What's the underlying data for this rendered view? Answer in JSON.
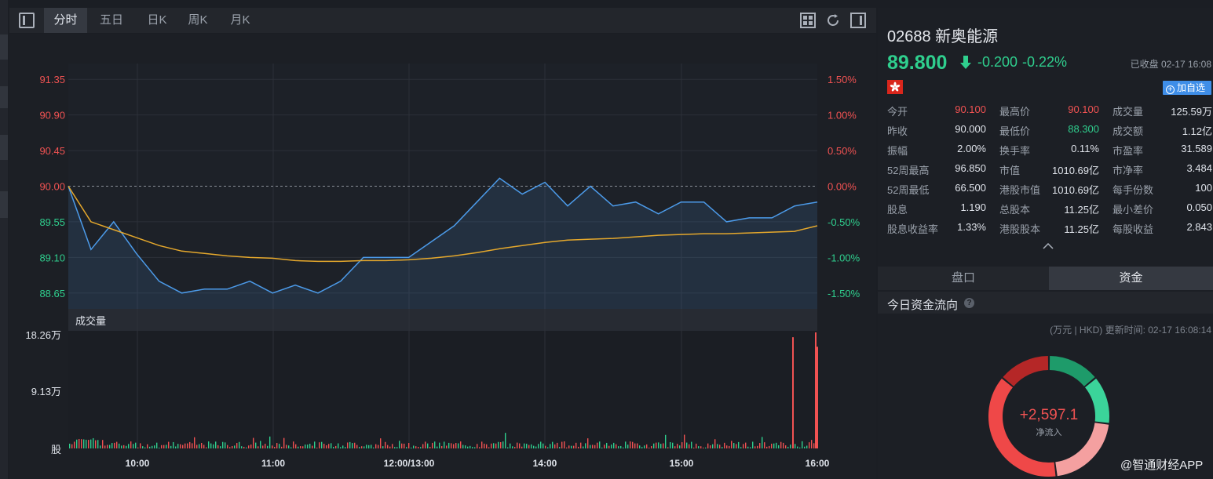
{
  "toolbar": {
    "tabs": [
      "分时",
      "五日",
      "日K",
      "周K",
      "月K"
    ],
    "active_tab": "分时"
  },
  "chart": {
    "price_ticks": [
      "91.35",
      "90.90",
      "90.45",
      "90.00",
      "89.55",
      "89.10",
      "88.65"
    ],
    "pct_ticks": [
      "1.50%",
      "1.00%",
      "0.50%",
      "0.00%",
      "-0.50%",
      "-1.00%",
      "-1.50%"
    ],
    "volume_label": "成交量",
    "volume_ticks": [
      "18.26万",
      "9.13万",
      "股"
    ],
    "time_ticks": [
      "10:00",
      "11:00",
      "12:00/13:00",
      "14:00",
      "15:00",
      "16:00"
    ],
    "colors": {
      "up": "#f05252",
      "down": "#2fcf8e",
      "price_line": "#4c9bea",
      "avg_line": "#e5a82c"
    }
  },
  "chart_data": {
    "type": "line",
    "x": [
      "09:30",
      "09:40",
      "09:50",
      "10:00",
      "10:10",
      "10:20",
      "10:30",
      "10:40",
      "10:50",
      "11:00",
      "11:10",
      "11:20",
      "11:30",
      "11:40",
      "11:50",
      "12:00/13:00",
      "13:10",
      "13:20",
      "13:30",
      "13:40",
      "13:50",
      "14:00",
      "14:10",
      "14:20",
      "14:30",
      "14:40",
      "14:50",
      "15:00",
      "15:10",
      "15:20",
      "15:30",
      "15:40",
      "15:50",
      "16:00"
    ],
    "series": [
      {
        "values": [
          90.0,
          89.2,
          89.55,
          89.15,
          88.8,
          88.65,
          88.7,
          88.7,
          88.8,
          88.65,
          88.75,
          88.65,
          88.8,
          89.1,
          89.1,
          89.1,
          89.3,
          89.5,
          89.8,
          90.1,
          89.9,
          90.05,
          89.75,
          90.0,
          89.75,
          89.8,
          89.65,
          89.8,
          89.8,
          89.55,
          89.6,
          89.6,
          89.75,
          89.8
        ]
      },
      {
        "values": [
          90.0,
          89.55,
          89.45,
          89.35,
          89.25,
          89.18,
          89.15,
          89.12,
          89.1,
          89.09,
          89.06,
          89.05,
          89.05,
          89.06,
          89.06,
          89.07,
          89.09,
          89.12,
          89.16,
          89.21,
          89.25,
          89.29,
          89.32,
          89.33,
          89.34,
          89.36,
          89.38,
          89.39,
          89.4,
          89.4,
          89.41,
          89.42,
          89.43,
          89.5
        ]
      }
    ],
    "ylim": [
      88.45,
      91.55
    ],
    "volume": {
      "unit": "股",
      "ylim": [
        0,
        182600
      ],
      "last_values": [
        175000,
        182600,
        160000
      ]
    }
  },
  "stock": {
    "code_name": "02688 新奥能源",
    "price": "89.800",
    "change": "-0.200",
    "change_pct": "-0.22%",
    "status": "已收盘 02-17 16:08",
    "add_watchlist": "加自选"
  },
  "stats": [
    [
      [
        "今开",
        "90.100",
        "up"
      ],
      [
        "最高价",
        "90.100",
        "up"
      ],
      [
        "成交量",
        "125.59万",
        "n"
      ]
    ],
    [
      [
        "昨收",
        "90.000",
        "n"
      ],
      [
        "最低价",
        "88.300",
        "down"
      ],
      [
        "成交额",
        "1.12亿",
        "n"
      ]
    ],
    [
      [
        "振幅",
        "2.00%",
        "n"
      ],
      [
        "换手率",
        "0.11%",
        "n"
      ],
      [
        "市盈率",
        "31.589",
        "n"
      ]
    ],
    [
      [
        "52周最高",
        "96.850",
        "n"
      ],
      [
        "市值",
        "1010.69亿",
        "n"
      ],
      [
        "市净率",
        "3.484",
        "n"
      ]
    ],
    [
      [
        "52周最低",
        "66.500",
        "n"
      ],
      [
        "港股市值",
        "1010.69亿",
        "n"
      ],
      [
        "每手份数",
        "100",
        "n"
      ]
    ],
    [
      [
        "股息",
        "1.190",
        "n"
      ],
      [
        "总股本",
        "11.25亿",
        "n"
      ],
      [
        "最小差价",
        "0.050",
        "n"
      ]
    ],
    [
      [
        "股息收益率",
        "1.33%",
        "n"
      ],
      [
        "港股股本",
        "11.25亿",
        "n"
      ],
      [
        "每股收益",
        "2.843",
        "n"
      ]
    ]
  ],
  "panel_tabs": {
    "left": "盘口",
    "right": "资金"
  },
  "capital_flow": {
    "title": "今日资金流向",
    "meta": "(万元 | HKD) 更新时间: 02-17 16:08:14",
    "net_value": "+2,597.1",
    "net_label": "净流入",
    "segments": [
      {
        "color": "#1e9b6a",
        "fraction": 0.14
      },
      {
        "color": "#3bd49a",
        "fraction": 0.13
      },
      {
        "color": "#f4a0a0",
        "fraction": 0.21
      },
      {
        "color": "#ef4848",
        "fraction": 0.38
      },
      {
        "color": "#b52727",
        "fraction": 0.14
      }
    ]
  },
  "watermark": "@智通财经APP"
}
